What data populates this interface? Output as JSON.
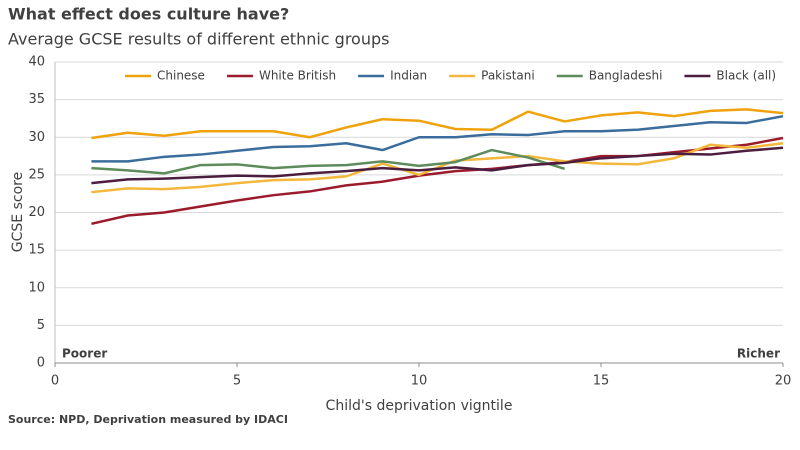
{
  "chart_data": {
    "type": "line",
    "title": "What effect does culture have?",
    "subtitle": "Average GCSE results of different ethnic groups",
    "xlabel": "Child's deprivation vigntile",
    "ylabel": "GCSE score",
    "source": "Source: NPD, Deprivation measured by IDACI",
    "annotations": [
      "Poorer",
      "Richer"
    ],
    "x": [
      1,
      2,
      3,
      4,
      5,
      6,
      7,
      8,
      9,
      10,
      11,
      12,
      13,
      14,
      15,
      16,
      17,
      18,
      19,
      20
    ],
    "xlim": [
      0,
      20
    ],
    "xticks": [
      0,
      5,
      10,
      15,
      20
    ],
    "ylim": [
      0,
      40
    ],
    "yticks": [
      0,
      5,
      10,
      15,
      20,
      25,
      30,
      35,
      40
    ],
    "grid": true,
    "legend": "top",
    "series": [
      {
        "name": "Chinese",
        "color": "#f0a20c",
        "values": [
          29.9,
          30.6,
          30.2,
          30.8,
          30.8,
          30.8,
          30.0,
          31.3,
          32.4,
          32.2,
          31.1,
          31.0,
          33.4,
          32.1,
          32.9,
          33.3,
          32.8,
          33.5,
          33.7,
          33.2
        ]
      },
      {
        "name": "White British",
        "color": "#9b1b2d",
        "values": [
          18.5,
          19.6,
          20.0,
          20.8,
          21.6,
          22.3,
          22.8,
          23.6,
          24.1,
          24.9,
          25.5,
          25.8,
          26.3,
          26.7,
          27.5,
          27.5,
          28.0,
          28.5,
          29.0,
          29.9
        ]
      },
      {
        "name": "Indian",
        "color": "#3b6d9c",
        "values": [
          26.8,
          26.8,
          27.4,
          27.7,
          28.2,
          28.7,
          28.8,
          29.2,
          28.3,
          30.0,
          30.0,
          30.4,
          30.3,
          30.8,
          30.8,
          31.0,
          31.5,
          32.0,
          31.9,
          32.8
        ]
      },
      {
        "name": "Pakistani",
        "color": "#f3b73c",
        "values": [
          22.7,
          23.2,
          23.1,
          23.4,
          23.9,
          24.3,
          24.4,
          24.8,
          26.5,
          25.0,
          26.9,
          27.2,
          27.5,
          26.8,
          26.5,
          26.4,
          27.2,
          29.0,
          28.6,
          29.2
        ]
      },
      {
        "name": "Bangladeshi",
        "color": "#5e8b5c",
        "values": [
          25.9,
          25.6,
          25.2,
          26.3,
          26.4,
          25.9,
          26.2,
          26.3,
          26.8,
          26.2,
          26.7,
          28.3,
          27.3,
          25.8,
          null,
          null,
          null,
          null,
          null,
          null
        ]
      },
      {
        "name": "Black (all)",
        "color": "#4b1d3f",
        "values": [
          23.9,
          24.4,
          24.5,
          24.7,
          24.9,
          24.8,
          25.2,
          25.5,
          25.9,
          25.6,
          26.0,
          25.6,
          26.3,
          26.6,
          27.2,
          27.5,
          27.8,
          27.7,
          28.2,
          28.6
        ]
      }
    ]
  }
}
